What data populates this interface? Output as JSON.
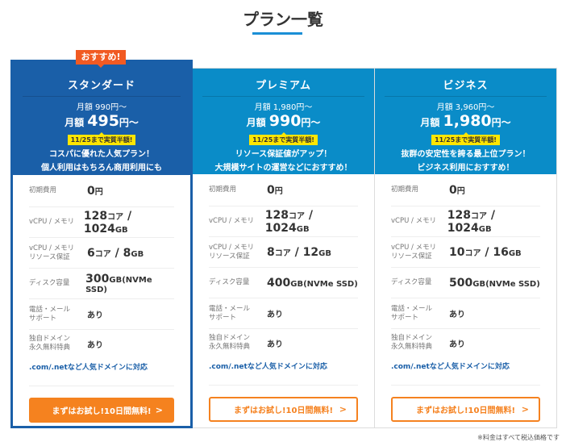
{
  "page": {
    "title": "プラン一覧",
    "footnote": "※料金はすべて税込価格です"
  },
  "colors": {
    "standard_header": "#1a5fa8",
    "other_header": "#0a8cc8",
    "cta": "#f5821f",
    "badge": "#f15a22",
    "tag": "#ffe600"
  },
  "labels": {
    "initial": "初期費用",
    "vcpu": "vCPU / メモリ",
    "guarantee_1": "vCPU / メモリ",
    "guarantee_2": "リソース保証",
    "disk": "ディスク容量",
    "support_1": "電話・メール",
    "support_2": "サポート",
    "domain_1": "独自ドメイン",
    "domain_2": "永久無料特典",
    "domain_note": ".com/.netなど人気ドメインに対応"
  },
  "plans": [
    {
      "badge": "おすすめ!",
      "name": "スタンダード",
      "orig": "月額 990円〜",
      "price_prefix": "月額 ",
      "price": "495",
      "price_suffix": "円〜",
      "tag": "11/25まで実質半額!",
      "desc1": "コスパに優れた人気プラン！",
      "desc2": "個人利用はもちろん商用利用にも",
      "initial": "0",
      "initial_unit": "円",
      "cores": "128",
      "memory": "1024",
      "g_cores": "6",
      "g_mem": "8",
      "disk": "300",
      "disk_unit": "GB(NVMe SSD)",
      "support": "あり",
      "domain": "あり",
      "cta": "まずはお試し!10日間無料!"
    },
    {
      "name": "プレミアム",
      "orig": "月額 1,980円〜",
      "price_prefix": "月額 ",
      "price": "990",
      "price_suffix": "円〜",
      "tag": "11/25まで実質半額!",
      "desc1": "リソース保証値がアップ！",
      "desc2": "大規模サイトの運営などにおすすめ！",
      "initial": "0",
      "initial_unit": "円",
      "cores": "128",
      "memory": "1024",
      "g_cores": "8",
      "g_mem": "12",
      "disk": "400",
      "disk_unit": "GB(NVMe SSD)",
      "support": "あり",
      "domain": "あり",
      "cta": "まずはお試し!10日間無料!"
    },
    {
      "name": "ビジネス",
      "orig": "月額 3,960円〜",
      "price_prefix": "月額 ",
      "price": "1,980",
      "price_suffix": "円〜",
      "tag": "11/25まで実質半額!",
      "desc1": "抜群の安定性を誇る最上位プラン！",
      "desc2": "ビジネス利用におすすめ！",
      "initial": "0",
      "initial_unit": "円",
      "cores": "128",
      "memory": "1024",
      "g_cores": "10",
      "g_mem": "16",
      "disk": "500",
      "disk_unit": "GB(NVMe SSD)",
      "support": "あり",
      "domain": "あり",
      "cta": "まずはお試し!10日間無料!"
    }
  ],
  "units": {
    "core": "コア",
    "sep": " / ",
    "gb": "GB"
  }
}
